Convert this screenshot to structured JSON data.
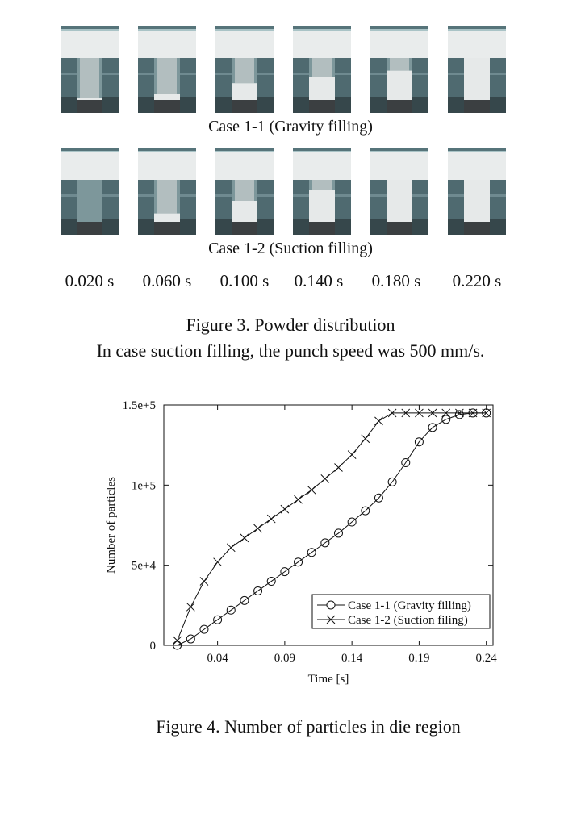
{
  "figure3": {
    "rows": [
      {
        "label": "Case 1-1 (Gravity filling)",
        "fill_levels": [
          0.05,
          0.15,
          0.4,
          0.55,
          0.7,
          1.0
        ]
      },
      {
        "label": "Case 1-2 (Suction filling)",
        "fill_levels": [
          0.0,
          0.2,
          0.5,
          0.75,
          1.0,
          1.0
        ]
      }
    ],
    "times": [
      "0.020 s",
      "0.060 s",
      "0.100 s",
      "0.140 s",
      "0.180 s",
      "0.220 s"
    ],
    "caption_line1": "Figure 3. Powder distribution",
    "caption_line2": "In case suction filling, the punch speed was 500 mm/s."
  },
  "figure4": {
    "caption": "Figure 4. Number of particles in die region"
  },
  "chart_data": {
    "type": "line",
    "xlabel": "Time [s]",
    "ylabel": "Number of particles",
    "xlim": [
      0.0,
      0.245
    ],
    "ylim": [
      0,
      150000
    ],
    "xticks": [
      0.04,
      0.09,
      0.14,
      0.19,
      0.24
    ],
    "xtick_labels": [
      "0.04",
      "0.09",
      "0.14",
      "0.19",
      "0.24"
    ],
    "yticks": [
      0,
      50000,
      100000,
      150000
    ],
    "ytick_labels": [
      "0",
      "5e+4",
      "1e+5",
      "1.5e+5"
    ],
    "legend_position": "bottom-right",
    "grid": false,
    "series": [
      {
        "name": "Case 1-1 (Gravity filling)",
        "marker": "circle",
        "x": [
          0.01,
          0.02,
          0.03,
          0.04,
          0.05,
          0.06,
          0.07,
          0.08,
          0.09,
          0.1,
          0.11,
          0.12,
          0.13,
          0.14,
          0.15,
          0.16,
          0.17,
          0.18,
          0.19,
          0.2,
          0.21,
          0.22,
          0.23,
          0.24
        ],
        "y": [
          0,
          4000,
          10000,
          16000,
          22000,
          28000,
          34000,
          40000,
          46000,
          52000,
          58000,
          64000,
          70000,
          77000,
          84000,
          92000,
          102000,
          114000,
          127000,
          136000,
          141000,
          144000,
          145000,
          145000
        ]
      },
      {
        "name": "Case 1-2 (Suction filing)",
        "marker": "x",
        "x": [
          0.01,
          0.02,
          0.03,
          0.04,
          0.05,
          0.06,
          0.07,
          0.08,
          0.09,
          0.1,
          0.11,
          0.12,
          0.13,
          0.14,
          0.15,
          0.16,
          0.17,
          0.18,
          0.19,
          0.2,
          0.21,
          0.22,
          0.23,
          0.24
        ],
        "y": [
          3000,
          24000,
          40000,
          52000,
          61000,
          67000,
          73000,
          79000,
          85000,
          91000,
          97000,
          104000,
          111000,
          119000,
          129000,
          140000,
          145000,
          145000,
          145000,
          145000,
          145000,
          145000,
          145000,
          145000
        ]
      }
    ]
  }
}
